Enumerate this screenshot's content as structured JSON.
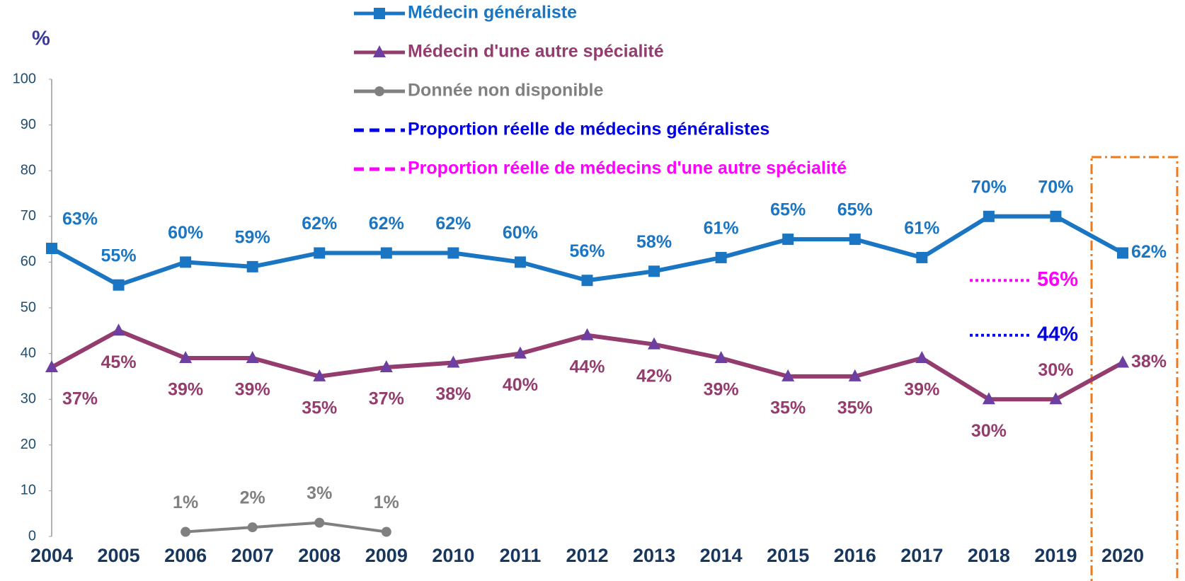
{
  "chart_data": {
    "type": "line",
    "y_axis_label": "%",
    "categories": [
      "2004",
      "2005",
      "2006",
      "2007",
      "2008",
      "2009",
      "2010",
      "2011",
      "2012",
      "2013",
      "2014",
      "2015",
      "2016",
      "2017",
      "2018",
      "2019",
      "2020"
    ],
    "ylim": [
      0,
      100
    ],
    "yticks": [
      0,
      10,
      20,
      30,
      40,
      50,
      60,
      70,
      80,
      90,
      100
    ],
    "series": [
      {
        "name": "Médecin généraliste",
        "color": "#1a75c2",
        "marker": "square",
        "values": [
          63,
          55,
          60,
          59,
          62,
          62,
          62,
          60,
          56,
          58,
          61,
          65,
          65,
          61,
          70,
          70,
          62
        ],
        "value_labels": [
          "63%",
          "55%",
          "60%",
          "59%",
          "62%",
          "62%",
          "62%",
          "60%",
          "56%",
          "58%",
          "61%",
          "65%",
          "65%",
          "61%",
          "70%",
          "70%",
          "62%"
        ]
      },
      {
        "name": "Médecin d'une autre spécialité",
        "color": "#943c6e",
        "marker": "triangle",
        "values": [
          37,
          45,
          39,
          39,
          35,
          37,
          38,
          40,
          44,
          42,
          39,
          35,
          35,
          39,
          30,
          30,
          38
        ],
        "value_labels": [
          "37%",
          "45%",
          "39%",
          "39%",
          "35%",
          "37%",
          "38%",
          "40%",
          "44%",
          "42%",
          "39%",
          "35%",
          "35%",
          "39%",
          "30%",
          "30%",
          "38%"
        ]
      },
      {
        "name": "Donnée non disponible",
        "color": "#808080",
        "marker": "circle",
        "values": [
          null,
          null,
          1,
          2,
          3,
          1,
          null,
          null,
          null,
          null,
          null,
          null,
          null,
          null,
          null,
          null,
          null
        ],
        "value_labels": [
          null,
          null,
          "1%",
          "2%",
          "3%",
          "1%",
          null,
          null,
          null,
          null,
          null,
          null,
          null,
          null,
          null,
          null,
          null
        ]
      },
      {
        "name": "Proportion réelle de médecins généralistes",
        "color": "#0000e6",
        "marker": "dashed",
        "values": [
          null,
          null,
          null,
          null,
          null,
          null,
          null,
          null,
          null,
          null,
          null,
          null,
          null,
          null,
          null,
          null,
          44
        ],
        "value_labels": [
          null,
          null,
          null,
          null,
          null,
          null,
          null,
          null,
          null,
          null,
          null,
          null,
          null,
          null,
          null,
          null,
          "44%"
        ]
      },
      {
        "name": "Proportion réelle de médecins d'une autre spécialité",
        "color": "#ff00ff",
        "marker": "dashed",
        "values": [
          null,
          null,
          null,
          null,
          null,
          null,
          null,
          null,
          null,
          null,
          null,
          null,
          null,
          null,
          null,
          null,
          56
        ],
        "value_labels": [
          null,
          null,
          null,
          null,
          null,
          null,
          null,
          null,
          null,
          null,
          null,
          null,
          null,
          null,
          null,
          null,
          "56%"
        ]
      }
    ],
    "highlight_color": "#f07a1a"
  }
}
